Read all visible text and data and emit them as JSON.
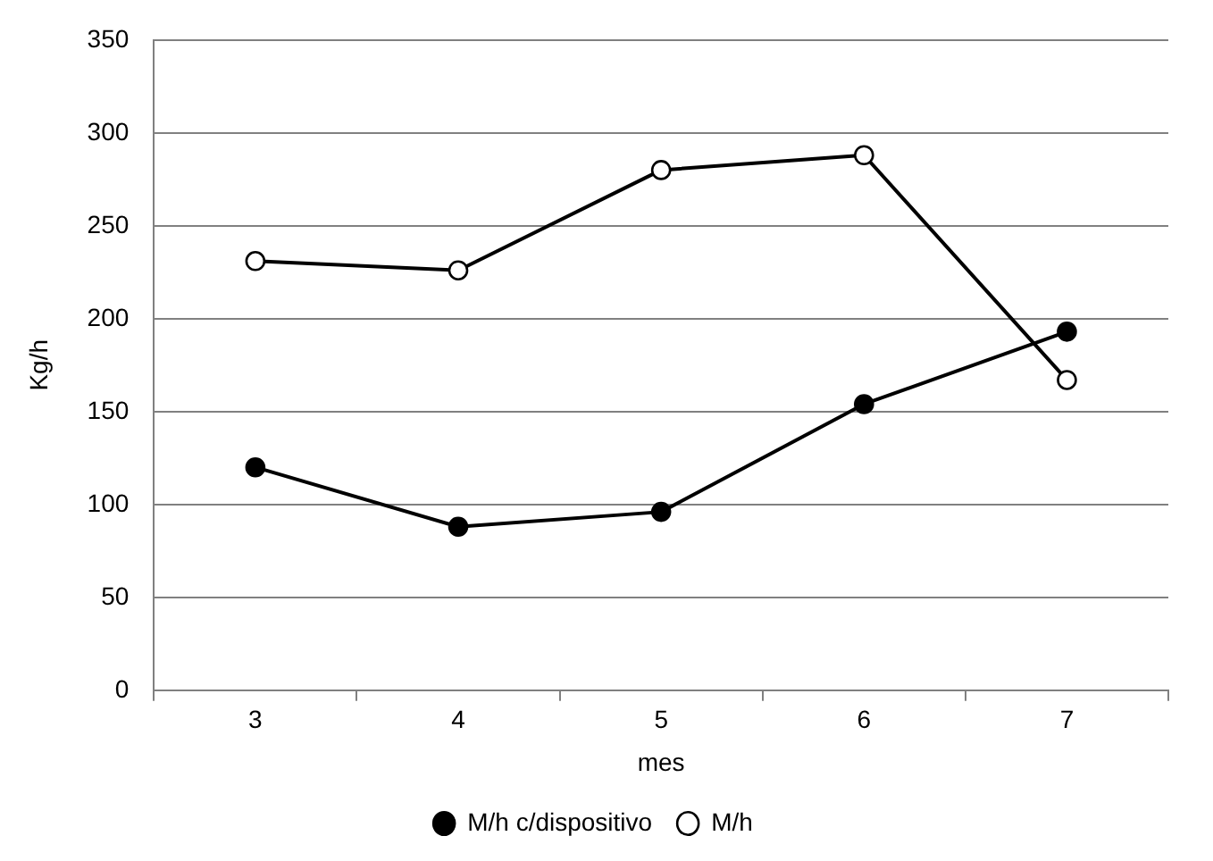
{
  "chart_data": {
    "type": "line",
    "xlabel": "mes",
    "ylabel": "Kg/h",
    "categories": [
      "3",
      "4",
      "5",
      "6",
      "7"
    ],
    "series": [
      {
        "name": "M/h c/dispositivo",
        "color": "#000000",
        "marker": "circle",
        "values": [
          120,
          88,
          96,
          154,
          193
        ]
      },
      {
        "name": "M/h",
        "color": "#000000",
        "marker": "circle_open",
        "values": [
          231,
          226,
          280,
          288,
          167
        ]
      }
    ],
    "ylim": [
      0,
      350
    ],
    "yticks": [
      0,
      50,
      100,
      150,
      200,
      250,
      300,
      350
    ],
    "grid": "y",
    "legend": "bottom",
    "line_style": "solid"
  }
}
